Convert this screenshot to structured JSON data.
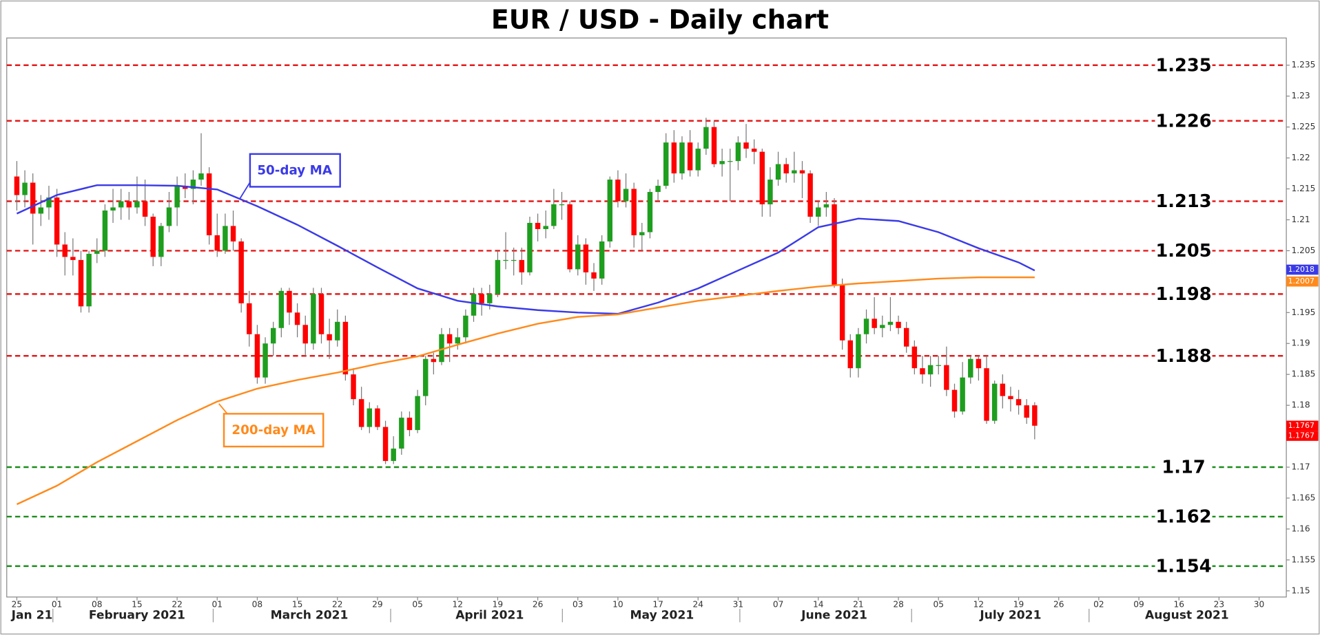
{
  "chart_data": {
    "type": "candlestick",
    "title": "EUR / USD - Daily chart",
    "up_color": "#1e9e1e",
    "down_color": "#ff0000",
    "candles": [
      [
        1.217,
        1.2195,
        1.2115,
        1.214
      ],
      [
        1.214,
        1.218,
        1.212,
        1.216
      ],
      [
        1.216,
        1.2175,
        1.206,
        1.211
      ],
      [
        1.211,
        1.214,
        1.209,
        1.212
      ],
      [
        1.212,
        1.2155,
        1.21,
        1.2136
      ],
      [
        1.2136,
        1.215,
        1.204,
        1.206
      ],
      [
        1.206,
        1.208,
        1.201,
        1.204
      ],
      [
        1.204,
        1.207,
        1.201,
        1.2035
      ],
      [
        1.2035,
        1.205,
        1.195,
        1.196
      ],
      [
        1.196,
        1.205,
        1.195,
        1.2045
      ],
      [
        1.2045,
        1.207,
        1.203,
        1.205
      ],
      [
        1.205,
        1.2125,
        1.204,
        1.2115
      ],
      [
        1.2115,
        1.215,
        1.2095,
        1.212
      ],
      [
        1.212,
        1.215,
        1.21,
        1.213
      ],
      [
        1.213,
        1.2145,
        1.21,
        1.212
      ],
      [
        1.212,
        1.217,
        1.211,
        1.213
      ],
      [
        1.213,
        1.2165,
        1.209,
        1.2105
      ],
      [
        1.2105,
        1.211,
        1.2025,
        1.204
      ],
      [
        1.204,
        1.2095,
        1.2025,
        1.209
      ],
      [
        1.209,
        1.2145,
        1.208,
        1.212
      ],
      [
        1.212,
        1.217,
        1.209,
        1.2155
      ],
      [
        1.2155,
        1.2175,
        1.2135,
        1.215
      ],
      [
        1.215,
        1.218,
        1.2125,
        1.2165
      ],
      [
        1.2165,
        1.224,
        1.2155,
        1.2175
      ],
      [
        1.2175,
        1.2185,
        1.206,
        1.2075
      ],
      [
        1.2075,
        1.211,
        1.204,
        1.205
      ],
      [
        1.205,
        1.211,
        1.2045,
        1.209
      ],
      [
        1.209,
        1.2115,
        1.205,
        1.2065
      ],
      [
        1.2065,
        1.207,
        1.195,
        1.1965
      ],
      [
        1.1965,
        1.1985,
        1.1895,
        1.1915
      ],
      [
        1.1915,
        1.193,
        1.1835,
        1.1845
      ],
      [
        1.1845,
        1.191,
        1.1835,
        1.19
      ],
      [
        1.19,
        1.1935,
        1.188,
        1.1925
      ],
      [
        1.1925,
        1.199,
        1.191,
        1.1985
      ],
      [
        1.1985,
        1.199,
        1.193,
        1.195
      ],
      [
        1.195,
        1.1965,
        1.191,
        1.193
      ],
      [
        1.193,
        1.1945,
        1.188,
        1.19
      ],
      [
        1.19,
        1.199,
        1.189,
        1.198
      ],
      [
        1.198,
        1.199,
        1.19,
        1.1915
      ],
      [
        1.1915,
        1.194,
        1.1875,
        1.1905
      ],
      [
        1.1905,
        1.1955,
        1.1895,
        1.1935
      ],
      [
        1.1935,
        1.1945,
        1.184,
        1.185
      ],
      [
        1.185,
        1.186,
        1.18,
        1.181
      ],
      [
        1.181,
        1.183,
        1.176,
        1.1765
      ],
      [
        1.1765,
        1.1805,
        1.1755,
        1.1795
      ],
      [
        1.1795,
        1.18,
        1.176,
        1.1765
      ],
      [
        1.1765,
        1.1775,
        1.1705,
        1.171
      ],
      [
        1.171,
        1.175,
        1.1705,
        1.173
      ],
      [
        1.173,
        1.179,
        1.172,
        1.178
      ],
      [
        1.178,
        1.179,
        1.175,
        1.176
      ],
      [
        1.176,
        1.1825,
        1.1755,
        1.1815
      ],
      [
        1.1815,
        1.188,
        1.18,
        1.1875
      ],
      [
        1.1875,
        1.1885,
        1.185,
        1.187
      ],
      [
        1.187,
        1.1925,
        1.1865,
        1.1915
      ],
      [
        1.1915,
        1.1925,
        1.187,
        1.19
      ],
      [
        1.19,
        1.1925,
        1.189,
        1.191
      ],
      [
        1.191,
        1.1955,
        1.19,
        1.1945
      ],
      [
        1.1945,
        1.199,
        1.1935,
        1.198
      ],
      [
        1.198,
        1.199,
        1.1945,
        1.1965
      ],
      [
        1.1965,
        1.1995,
        1.1955,
        1.198
      ],
      [
        1.198,
        1.205,
        1.1975,
        1.2035
      ],
      [
        1.2035,
        1.208,
        1.202,
        1.2035
      ],
      [
        1.2035,
        1.2055,
        1.201,
        1.2035
      ],
      [
        1.2035,
        1.2055,
        1.1995,
        1.2015
      ],
      [
        1.2015,
        1.2105,
        1.201,
        1.2095
      ],
      [
        1.2095,
        1.211,
        1.2065,
        1.2085
      ],
      [
        1.2085,
        1.2115,
        1.207,
        1.209
      ],
      [
        1.209,
        1.215,
        1.2085,
        1.2125
      ],
      [
        1.2125,
        1.2145,
        1.21,
        1.2125
      ],
      [
        1.2125,
        1.213,
        1.2015,
        1.202
      ],
      [
        1.202,
        1.2075,
        1.201,
        1.206
      ],
      [
        1.206,
        1.207,
        1.1995,
        1.2015
      ],
      [
        1.2015,
        1.203,
        1.1985,
        1.2005
      ],
      [
        1.2005,
        1.2075,
        1.1995,
        1.2065
      ],
      [
        1.2065,
        1.217,
        1.2055,
        1.2165
      ],
      [
        1.2165,
        1.218,
        1.212,
        1.213
      ],
      [
        1.213,
        1.2175,
        1.212,
        1.215
      ],
      [
        1.215,
        1.216,
        1.2055,
        1.2075
      ],
      [
        1.2075,
        1.2095,
        1.205,
        1.208
      ],
      [
        1.208,
        1.215,
        1.207,
        1.2145
      ],
      [
        1.2145,
        1.2165,
        1.213,
        1.2155
      ],
      [
        1.2155,
        1.224,
        1.215,
        1.2225
      ],
      [
        1.2225,
        1.2245,
        1.216,
        1.2175
      ],
      [
        1.2175,
        1.2235,
        1.2165,
        1.2225
      ],
      [
        1.2225,
        1.2245,
        1.217,
        1.218
      ],
      [
        1.218,
        1.2225,
        1.217,
        1.2215
      ],
      [
        1.2215,
        1.2265,
        1.2205,
        1.225
      ],
      [
        1.225,
        1.226,
        1.2185,
        1.219
      ],
      [
        1.219,
        1.2215,
        1.217,
        1.2195
      ],
      [
        1.2195,
        1.2215,
        1.213,
        1.2195
      ],
      [
        1.2195,
        1.2235,
        1.218,
        1.2225
      ],
      [
        1.2225,
        1.2255,
        1.22,
        1.2215
      ],
      [
        1.2215,
        1.223,
        1.219,
        1.221
      ],
      [
        1.221,
        1.2215,
        1.2105,
        1.2125
      ],
      [
        1.2125,
        1.2185,
        1.2105,
        1.2165
      ],
      [
        1.2165,
        1.221,
        1.2155,
        1.219
      ],
      [
        1.219,
        1.22,
        1.216,
        1.2175
      ],
      [
        1.2175,
        1.221,
        1.216,
        1.218
      ],
      [
        1.218,
        1.2195,
        1.2135,
        1.2175
      ],
      [
        1.2175,
        1.218,
        1.2095,
        1.2105
      ],
      [
        1.2105,
        1.213,
        1.209,
        1.212
      ],
      [
        1.212,
        1.2145,
        1.2105,
        1.2125
      ],
      [
        1.2125,
        1.2135,
        1.199,
        1.1995
      ],
      [
        1.1995,
        1.2005,
        1.189,
        1.1905
      ],
      [
        1.1905,
        1.1915,
        1.1845,
        1.186
      ],
      [
        1.186,
        1.1925,
        1.1845,
        1.1915
      ],
      [
        1.1915,
        1.1955,
        1.19,
        1.194
      ],
      [
        1.194,
        1.1975,
        1.1915,
        1.1925
      ],
      [
        1.1925,
        1.1945,
        1.191,
        1.193
      ],
      [
        1.193,
        1.1975,
        1.192,
        1.1935
      ],
      [
        1.1935,
        1.1945,
        1.1915,
        1.1925
      ],
      [
        1.1925,
        1.1935,
        1.1885,
        1.1895
      ],
      [
        1.1895,
        1.1905,
        1.185,
        1.186
      ],
      [
        1.186,
        1.188,
        1.1835,
        1.185
      ],
      [
        1.185,
        1.188,
        1.183,
        1.1865
      ],
      [
        1.1865,
        1.188,
        1.185,
        1.1865
      ],
      [
        1.1865,
        1.1895,
        1.1815,
        1.1825
      ],
      [
        1.1825,
        1.1835,
        1.178,
        1.179
      ],
      [
        1.179,
        1.187,
        1.1785,
        1.1845
      ],
      [
        1.1845,
        1.188,
        1.1835,
        1.1875
      ],
      [
        1.1875,
        1.188,
        1.184,
        1.186
      ],
      [
        1.186,
        1.188,
        1.177,
        1.1775
      ],
      [
        1.1775,
        1.184,
        1.177,
        1.1835
      ],
      [
        1.1835,
        1.185,
        1.1795,
        1.1815
      ],
      [
        1.1815,
        1.183,
        1.179,
        1.181
      ],
      [
        1.181,
        1.1825,
        1.1785,
        1.18
      ],
      [
        1.18,
        1.181,
        1.177,
        1.178
      ],
      [
        1.18,
        1.1805,
        1.1745,
        1.1767
      ]
    ],
    "series": [
      {
        "name": "50-day MA",
        "color": "#3a3ae8",
        "x": [
          0,
          5,
          10,
          15,
          20,
          25,
          30,
          35,
          40,
          45,
          50,
          55,
          60,
          65,
          70,
          75,
          80,
          85,
          90,
          95,
          100,
          105,
          110,
          115,
          120,
          125,
          127
        ],
        "values": [
          1.211,
          1.214,
          1.2156,
          1.2156,
          1.2155,
          1.2149,
          1.2122,
          1.2092,
          1.2058,
          1.2023,
          1.1989,
          1.1969,
          1.196,
          1.1954,
          1.195,
          1.1948,
          1.1966,
          1.1989,
          1.2018,
          1.2047,
          1.2088,
          1.2102,
          1.2098,
          1.208,
          1.2054,
          1.2031,
          1.2018
        ]
      },
      {
        "name": "200-day MA",
        "color": "#ff8a1c",
        "x": [
          0,
          5,
          10,
          15,
          20,
          25,
          30,
          35,
          40,
          45,
          50,
          55,
          60,
          65,
          70,
          75,
          80,
          85,
          90,
          95,
          100,
          105,
          110,
          115,
          120,
          125,
          127
        ],
        "values": [
          1.164,
          1.167,
          1.1708,
          1.1742,
          1.1776,
          1.1806,
          1.1827,
          1.1841,
          1.1853,
          1.1867,
          1.1879,
          1.1898,
          1.1916,
          1.1932,
          1.1943,
          1.1947,
          1.1958,
          1.1969,
          1.1977,
          1.1985,
          1.1992,
          1.1997,
          1.2001,
          1.2005,
          1.2007,
          1.2007,
          1.2007
        ]
      }
    ],
    "levels": [
      {
        "value": 1.235,
        "color": "#e41a1a"
      },
      {
        "value": 1.226,
        "color": "#e41a1a"
      },
      {
        "value": 1.213,
        "color": "#e41a1a"
      },
      {
        "value": 1.205,
        "color": "#e41a1a"
      },
      {
        "value": 1.198,
        "color": "#e41a1a"
      },
      {
        "value": 1.188,
        "color": "#e41a1a"
      },
      {
        "value": 1.17,
        "color": "#1a8c1a"
      },
      {
        "value": 1.162,
        "color": "#1a8c1a"
      },
      {
        "value": 1.154,
        "color": "#1a8c1a"
      }
    ],
    "xlim": [
      -1.26,
      158.4
    ],
    "xticks": [
      {
        "value": 0,
        "label": "25"
      },
      {
        "value": 5,
        "label": "01"
      },
      {
        "value": 10,
        "label": "08"
      },
      {
        "value": 15,
        "label": "15"
      },
      {
        "value": 20,
        "label": "22"
      },
      {
        "value": 25,
        "label": "01"
      },
      {
        "value": 30,
        "label": "08"
      },
      {
        "value": 35,
        "label": "15"
      },
      {
        "value": 40,
        "label": "22"
      },
      {
        "value": 45,
        "label": "29"
      },
      {
        "value": 50,
        "label": "05"
      },
      {
        "value": 55,
        "label": "12"
      },
      {
        "value": 60,
        "label": "19"
      },
      {
        "value": 65,
        "label": "26"
      },
      {
        "value": 70,
        "label": "03"
      },
      {
        "value": 75,
        "label": "10"
      },
      {
        "value": 80,
        "label": "17"
      },
      {
        "value": 85,
        "label": "24"
      },
      {
        "value": 90,
        "label": "31"
      },
      {
        "value": 95,
        "label": "07"
      },
      {
        "value": 100,
        "label": "14"
      },
      {
        "value": 105,
        "label": "21"
      },
      {
        "value": 110,
        "label": "28"
      },
      {
        "value": 115,
        "label": "05"
      },
      {
        "value": 120,
        "label": "12"
      },
      {
        "value": 125,
        "label": "19"
      },
      {
        "value": 130,
        "label": "26"
      },
      {
        "value": 135,
        "label": "02"
      },
      {
        "value": 140,
        "label": "09"
      },
      {
        "value": 145,
        "label": "16"
      },
      {
        "value": 150,
        "label": "23"
      },
      {
        "value": 155,
        "label": "30"
      }
    ],
    "months": [
      {
        "value": 1.9,
        "label": "Jan 21"
      },
      {
        "value": 15,
        "label": "February 2021"
      },
      {
        "value": 36.5,
        "label": "March 2021"
      },
      {
        "value": 59,
        "label": "April 2021"
      },
      {
        "value": 80.5,
        "label": "May 2021"
      },
      {
        "value": 102,
        "label": "June 2021"
      },
      {
        "value": 124,
        "label": "July 2021"
      },
      {
        "value": 146,
        "label": "August 2021"
      }
    ],
    "ylim": [
      1.149,
      1.2394
    ],
    "yticks": [
      1.15,
      1.155,
      1.16,
      1.165,
      1.17,
      1.175,
      1.18,
      1.185,
      1.19,
      1.195,
      1.2,
      1.205,
      1.21,
      1.215,
      1.22,
      1.225,
      1.23,
      1.235
    ]
  }
}
